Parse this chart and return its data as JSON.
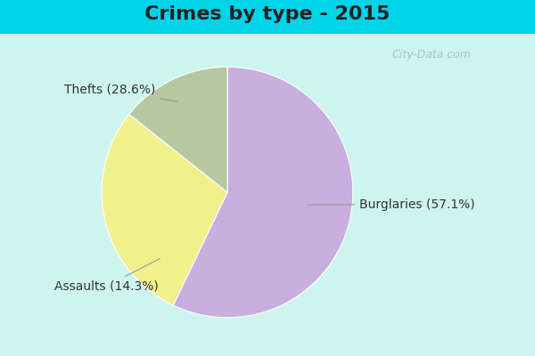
{
  "title": "Crimes by type - 2015",
  "slices": [
    {
      "label": "Burglaries (57.1%)",
      "value": 57.1,
      "color": "#c9aee0"
    },
    {
      "label": "Thefts (28.6%)",
      "value": 28.6,
      "color": "#f0f08c"
    },
    {
      "label": "Assaults (14.3%)",
      "value": 14.3,
      "color": "#b5c8a0"
    }
  ],
  "bg_color_top": "#00d4e8",
  "bg_color_inner": "#cdf5ed",
  "title_fontsize": 16,
  "label_fontsize": 10,
  "watermark": "City-Data.com"
}
